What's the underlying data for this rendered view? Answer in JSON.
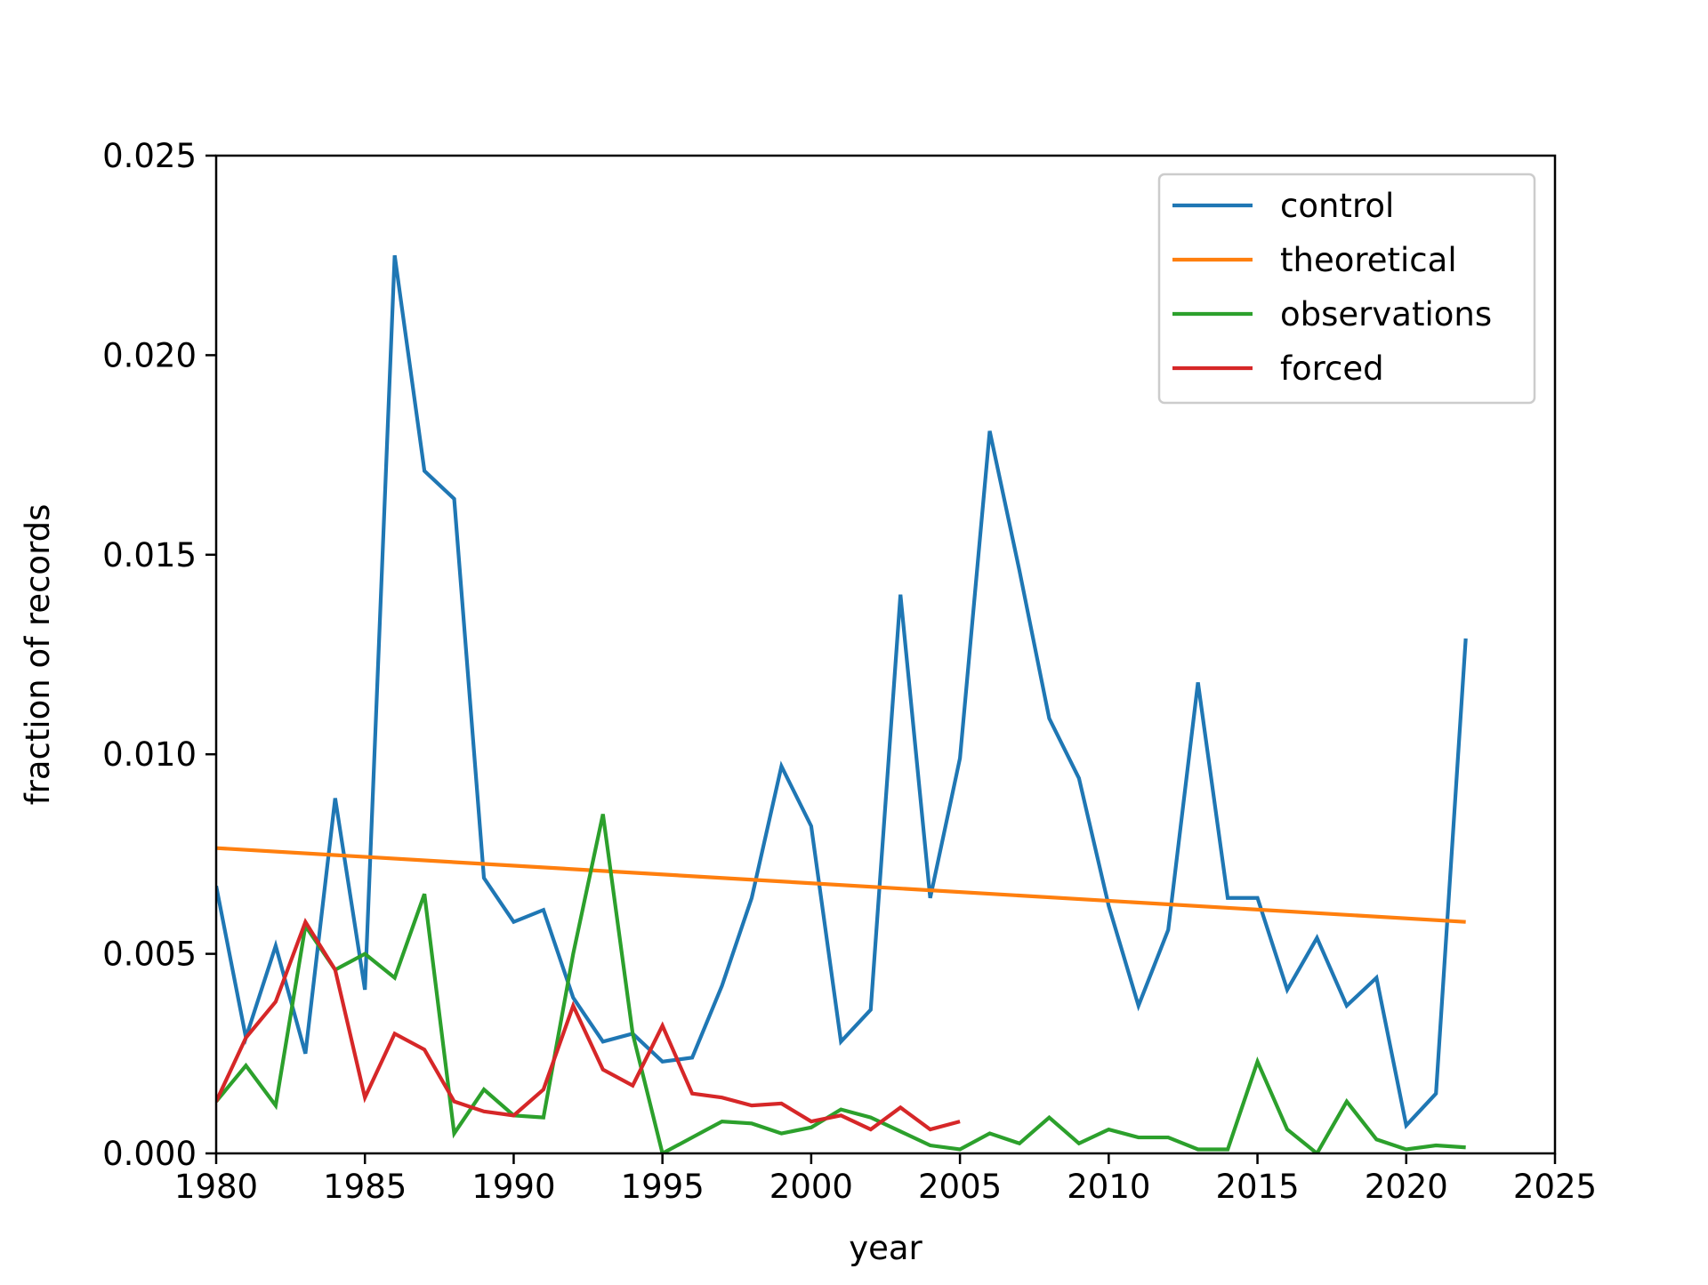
{
  "chart_data": {
    "type": "line",
    "title": "",
    "xlabel": "year",
    "ylabel": "fraction of records",
    "xlim": [
      1980,
      2025
    ],
    "ylim": [
      0,
      0.025
    ],
    "xticks": [
      1980,
      1985,
      1990,
      1995,
      2000,
      2005,
      2010,
      2015,
      2020,
      2025
    ],
    "xtick_labels": [
      "1980",
      "1985",
      "1990",
      "1995",
      "2000",
      "2005",
      "2010",
      "2015",
      "2020",
      "2025"
    ],
    "yticks": [
      0,
      0.005,
      0.01,
      0.015,
      0.02,
      0.025
    ],
    "ytick_labels": [
      "0.000",
      "0.005",
      "0.010",
      "0.015",
      "0.020",
      "0.025"
    ],
    "grid": false,
    "legend_position": "top-right",
    "series": [
      {
        "name": "control",
        "color": "#1f77b4",
        "x": [
          1980,
          1981,
          1982,
          1983,
          1984,
          1985,
          1986,
          1987,
          1988,
          1989,
          1990,
          1991,
          1992,
          1993,
          1994,
          1995,
          1996,
          1997,
          1998,
          1999,
          2000,
          2001,
          2002,
          2003,
          2004,
          2005,
          2006,
          2007,
          2008,
          2009,
          2010,
          2011,
          2012,
          2013,
          2014,
          2015,
          2016,
          2017,
          2018,
          2019,
          2020,
          2021,
          2022
        ],
        "values": [
          0.0067,
          0.0029,
          0.0052,
          0.0025,
          0.0089,
          0.0041,
          0.0225,
          0.0171,
          0.0164,
          0.0069,
          0.0058,
          0.0061,
          0.0039,
          0.0028,
          0.003,
          0.0023,
          0.0024,
          0.0042,
          0.0064,
          0.0097,
          0.0082,
          0.0028,
          0.0036,
          0.014,
          0.0064,
          0.0099,
          0.0181,
          0.0146,
          0.0109,
          0.0094,
          0.0062,
          0.0037,
          0.0056,
          0.0118,
          0.0064,
          0.0064,
          0.0041,
          0.0054,
          0.0037,
          0.0044,
          0.0007,
          0.0015,
          0.0129
        ]
      },
      {
        "name": "theoretical",
        "color": "#ff7f0e",
        "x": [
          1980,
          2022
        ],
        "values": [
          0.00765,
          0.0058
        ]
      },
      {
        "name": "observations",
        "color": "#2ca02c",
        "x": [
          1980,
          1981,
          1982,
          1983,
          1984,
          1985,
          1986,
          1987,
          1988,
          1989,
          1990,
          1991,
          1992,
          1993,
          1994,
          1995,
          1996,
          1997,
          1998,
          1999,
          2000,
          2001,
          2002,
          2003,
          2004,
          2005,
          2006,
          2007,
          2008,
          2009,
          2010,
          2011,
          2012,
          2013,
          2014,
          2015,
          2016,
          2017,
          2018,
          2019,
          2020,
          2021,
          2022
        ],
        "values": [
          0.0013,
          0.0022,
          0.0012,
          0.0057,
          0.0046,
          0.005,
          0.0044,
          0.0065,
          0.0005,
          0.0016,
          0.00095,
          0.0009,
          0.005,
          0.0085,
          0.003,
          0.0,
          0.0004,
          0.0008,
          0.00075,
          0.0005,
          0.00065,
          0.0011,
          0.0009,
          0.00055,
          0.0002,
          0.0001,
          0.0005,
          0.00025,
          0.0009,
          0.00025,
          0.0006,
          0.0004,
          0.0004,
          0.0001,
          0.0001,
          0.0023,
          0.0006,
          0.0,
          0.0013,
          0.00035,
          0.0001,
          0.0002,
          0.00015
        ]
      },
      {
        "name": "forced",
        "color": "#d62728",
        "x": [
          1980,
          1981,
          1982,
          1983,
          1984,
          1985,
          1986,
          1987,
          1988,
          1989,
          1990,
          1991,
          1992,
          1993,
          1994,
          1995,
          1996,
          1997,
          1998,
          1999,
          2000,
          2001,
          2002,
          2003,
          2004,
          2005
        ],
        "values": [
          0.0013,
          0.0029,
          0.0038,
          0.0058,
          0.0046,
          0.0014,
          0.003,
          0.0026,
          0.0013,
          0.00105,
          0.00095,
          0.0016,
          0.0037,
          0.0021,
          0.0017,
          0.0032,
          0.0015,
          0.0014,
          0.0012,
          0.00125,
          0.0008,
          0.00095,
          0.0006,
          0.00115,
          0.0006,
          0.0008
        ]
      }
    ]
  }
}
